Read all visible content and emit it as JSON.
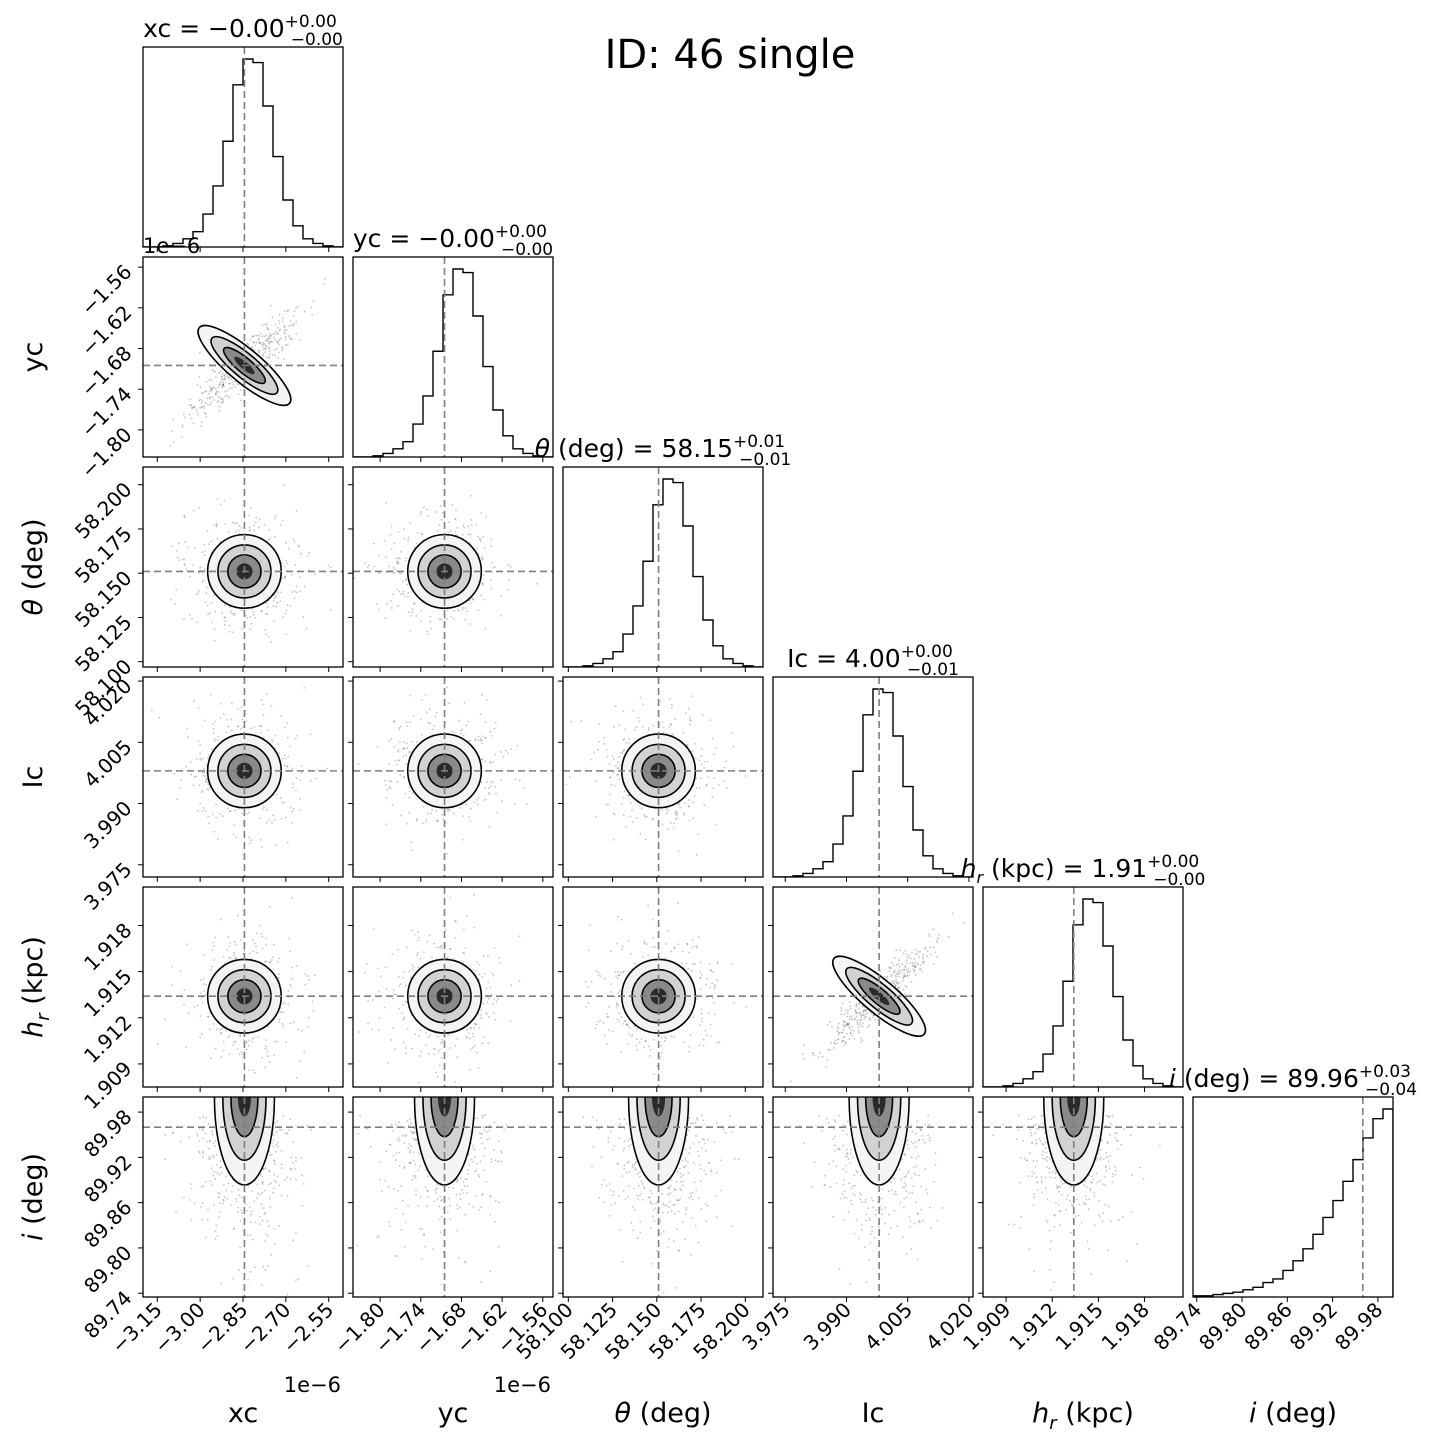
{
  "chart_data": {
    "type": "corner",
    "title": "ID: 46  single",
    "parameters": [
      {
        "key": "xc",
        "axis_label": "xc",
        "axis_label_sub": "",
        "axis_label_unit": "",
        "title_lhs": "xc",
        "title_sub": "",
        "title_unit": "",
        "median": "−0.00",
        "plus": "+0.00",
        "minus": "−0.00",
        "range": [
          -3.2,
          -2.5
        ],
        "truth": -2.845,
        "ticks": [
          -3.15,
          -3.0,
          -2.85,
          -2.7,
          -2.55
        ],
        "tick_labels": [
          "−3.15",
          "−3.00",
          "−2.85",
          "−2.70",
          "−2.55"
        ],
        "offset_label": "1e−6"
      },
      {
        "key": "yc",
        "axis_label": "yc",
        "axis_label_sub": "",
        "axis_label_unit": "",
        "title_lhs": "yc",
        "title_sub": "",
        "title_unit": "",
        "median": "−0.00",
        "plus": "+0.00",
        "minus": "−0.00",
        "range": [
          -1.84,
          -1.545
        ],
        "truth": -1.705,
        "ticks": [
          -1.8,
          -1.74,
          -1.68,
          -1.62,
          -1.56
        ],
        "tick_labels": [
          "−1.80",
          "−1.74",
          "−1.68",
          "−1.62",
          "−1.56"
        ],
        "offset_label": "1e−6"
      },
      {
        "key": "theta",
        "axis_label": "θ",
        "axis_label_sub": "",
        "axis_label_unit": " (deg)",
        "title_lhs": "θ",
        "title_sub": "",
        "title_unit": " (deg)",
        "median": "58.15",
        "plus": "+0.01",
        "minus": "−0.01",
        "range": [
          58.097,
          58.21
        ],
        "truth": 58.151,
        "ticks": [
          58.1,
          58.125,
          58.15,
          58.175,
          58.2
        ],
        "tick_labels": [
          "58.100",
          "58.125",
          "58.150",
          "58.175",
          "58.200"
        ],
        "offset_label": ""
      },
      {
        "key": "Ic",
        "axis_label": "Ic",
        "axis_label_sub": "",
        "axis_label_unit": "",
        "title_lhs": "Ic",
        "title_sub": "",
        "title_unit": "",
        "median": "4.00",
        "plus": "+0.00",
        "minus": "−0.01",
        "range": [
          3.972,
          4.021
        ],
        "truth": 3.998,
        "ticks": [
          3.975,
          3.99,
          4.005,
          4.02
        ],
        "tick_labels": [
          "3.975",
          "3.990",
          "4.005",
          "4.020"
        ],
        "offset_label": ""
      },
      {
        "key": "hr",
        "axis_label": "h",
        "axis_label_sub": "r",
        "axis_label_unit": " (kpc)",
        "title_lhs": "h",
        "title_sub": "r",
        "title_unit": " (kpc)",
        "median": "1.91",
        "plus": "+0.00",
        "minus": "−0.00",
        "range": [
          1.9075,
          1.9205
        ],
        "truth": 1.9134,
        "ticks": [
          1.909,
          1.912,
          1.915,
          1.918
        ],
        "tick_labels": [
          "1.909",
          "1.912",
          "1.915",
          "1.918"
        ],
        "offset_label": ""
      },
      {
        "key": "i",
        "axis_label": "i",
        "axis_label_sub": "",
        "axis_label_unit": " (deg)",
        "title_lhs": "i",
        "title_sub": "",
        "title_unit": " (deg)",
        "median": "89.96",
        "plus": "+0.03",
        "minus": "−0.04",
        "range": [
          89.735,
          90.0
        ],
        "truth": 89.96,
        "ticks": [
          89.74,
          89.8,
          89.86,
          89.92,
          89.98
        ],
        "tick_labels": [
          "89.74",
          "89.80",
          "89.86",
          "89.92",
          "89.98"
        ],
        "offset_label": ""
      }
    ],
    "hist_bins": 20,
    "histograms": [
      {
        "key": "xc",
        "counts": [
          0,
          0,
          1,
          3,
          7,
          13,
          28,
          52,
          90,
          138,
          160,
          157,
          120,
          77,
          40,
          18,
          7,
          3,
          1,
          0
        ]
      },
      {
        "key": "yc",
        "counts": [
          0,
          0,
          1,
          3,
          7,
          13,
          28,
          52,
          90,
          138,
          160,
          157,
          120,
          77,
          40,
          18,
          7,
          3,
          1,
          0
        ]
      },
      {
        "key": "theta",
        "counts": [
          0,
          0,
          1,
          3,
          7,
          13,
          28,
          52,
          90,
          138,
          160,
          157,
          120,
          77,
          40,
          18,
          7,
          3,
          1,
          0
        ]
      },
      {
        "key": "Ic",
        "counts": [
          0,
          0,
          1,
          3,
          7,
          13,
          28,
          52,
          90,
          138,
          160,
          157,
          120,
          77,
          40,
          18,
          7,
          3,
          1,
          0
        ]
      },
      {
        "key": "hr",
        "counts": [
          0,
          0,
          1,
          3,
          7,
          13,
          28,
          52,
          90,
          138,
          160,
          157,
          120,
          77,
          40,
          18,
          7,
          3,
          1,
          0
        ]
      },
      {
        "key": "i",
        "counts": [
          1,
          1,
          2,
          3,
          4,
          6,
          8,
          12,
          15,
          22,
          30,
          40,
          52,
          66,
          80,
          96,
          114,
          132,
          148,
          156
        ]
      }
    ],
    "colors": {
      "axes": "#000000",
      "truth_line": "#7f7f7f",
      "points": "#555555",
      "density": "#000000"
    }
  }
}
